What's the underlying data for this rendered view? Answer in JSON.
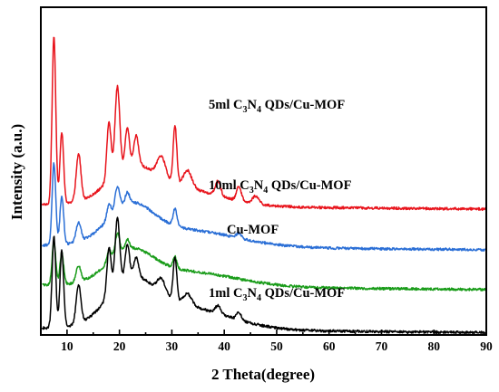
{
  "chart_data": {
    "type": "line",
    "title": "",
    "xlabel": "2 Theta(degree)",
    "ylabel": "Intensity (a.u.)",
    "xlim": [
      5,
      90
    ],
    "xticks": [
      10,
      20,
      30,
      40,
      50,
      60,
      70,
      80,
      90
    ],
    "yticks_shown": false,
    "grid": false,
    "legend": "none",
    "series": [
      {
        "name_parts": [
          "5ml C",
          "3",
          "N",
          "4",
          " QDs/Cu-MOF"
        ],
        "color": "#e8141c",
        "baseline": 158,
        "peaks": [
          [
            7.5,
            17.5,
            0.35
          ],
          [
            9.0,
            7.5,
            0.35
          ],
          [
            12.2,
            5.0,
            0.45
          ],
          [
            18.0,
            6.0,
            0.4
          ],
          [
            19.6,
            9.0,
            0.45
          ],
          [
            21.5,
            4.0,
            0.4
          ],
          [
            23.2,
            3.0,
            0.45
          ],
          [
            28.0,
            2.2,
            0.8
          ],
          [
            30.6,
            6.0,
            0.35
          ],
          [
            33.0,
            1.8,
            0.8
          ],
          [
            38.8,
            1.5,
            0.5
          ],
          [
            42.8,
            1.5,
            0.45
          ],
          [
            46.0,
            0.8,
            0.6
          ]
        ],
        "hump": [
          [
            22,
            6,
            3.0
          ],
          [
            30,
            12,
            2.0
          ]
        ]
      },
      {
        "name_parts": [
          "10ml C",
          "3",
          "N",
          "4",
          " QDs/Cu-MOF"
        ],
        "color": "#2b6fd6",
        "baseline": 107,
        "peaks": [
          [
            7.5,
            8.5,
            0.35
          ],
          [
            9.0,
            5.0,
            0.35
          ],
          [
            12.2,
            2.0,
            0.45
          ],
          [
            18.0,
            1.5,
            0.4
          ],
          [
            19.6,
            2.5,
            0.45
          ],
          [
            21.5,
            1.2,
            0.4
          ],
          [
            30.6,
            1.8,
            0.35
          ],
          [
            42.8,
            0.5,
            0.45
          ]
        ],
        "hump": [
          [
            22,
            6,
            3.5
          ],
          [
            32,
            14,
            1.8
          ]
        ]
      },
      {
        "name_parts": [
          "Cu-MOF"
        ],
        "color": "#1a9c1a",
        "baseline": 57,
        "peaks": [
          [
            7.5,
            4.5,
            0.35
          ],
          [
            9.0,
            3.3,
            0.35
          ],
          [
            12.2,
            1.7,
            0.45
          ],
          [
            18.0,
            1.2,
            0.4
          ],
          [
            19.6,
            2.2,
            0.45
          ],
          [
            21.5,
            1.0,
            0.4
          ],
          [
            30.6,
            1.2,
            0.35
          ]
        ],
        "hump": [
          [
            22,
            6,
            3.0
          ],
          [
            32,
            14,
            1.6
          ]
        ]
      },
      {
        "name_parts": [
          "1ml C",
          "3",
          "N",
          "4",
          " QDs/Cu-MOF"
        ],
        "color": "#000000",
        "baseline": 3,
        "peaks": [
          [
            7.5,
            9.5,
            0.35
          ],
          [
            9.0,
            8.0,
            0.35
          ],
          [
            12.2,
            4.0,
            0.45
          ],
          [
            18.0,
            5.0,
            0.4
          ],
          [
            19.6,
            7.0,
            0.45
          ],
          [
            21.5,
            3.5,
            0.4
          ],
          [
            23.2,
            2.0,
            0.45
          ],
          [
            28.0,
            1.5,
            0.8
          ],
          [
            30.6,
            4.5,
            0.35
          ],
          [
            33.0,
            1.2,
            0.8
          ],
          [
            38.8,
            0.8,
            0.5
          ],
          [
            42.8,
            0.8,
            0.45
          ]
        ],
        "hump": [
          [
            22,
            6,
            4.0
          ],
          [
            31,
            13,
            2.5
          ]
        ]
      }
    ]
  }
}
